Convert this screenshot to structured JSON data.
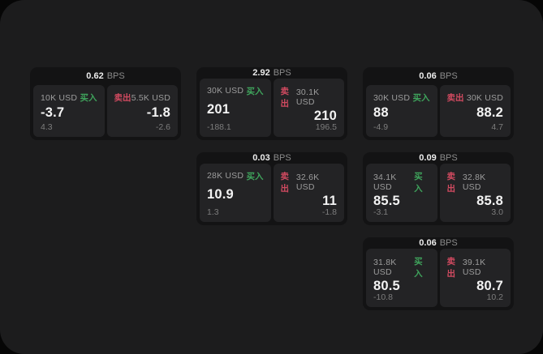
{
  "colors": {
    "buy_green": "#3fa45c",
    "sell_red": "#d14a60",
    "window_bg": "#1c1c1d",
    "card_bg": "#131314",
    "panel_bg": "#232325"
  },
  "labels": {
    "bps": "BPS",
    "buy": "买入",
    "sell": "卖出"
  },
  "cards": [
    {
      "bps": "0.62",
      "buy": {
        "amount": "10K USD",
        "price": "-3.7",
        "delta": "4.3"
      },
      "sell": {
        "amount": "5.5K USD",
        "price": "-1.8",
        "delta": "-2.6"
      }
    },
    {
      "bps": "2.92",
      "buy": {
        "amount": "30K USD",
        "price": "201",
        "delta": "-188.1"
      },
      "sell": {
        "amount": "30.1K USD",
        "price": "210",
        "delta": "196.5"
      }
    },
    {
      "bps": "0.06",
      "buy": {
        "amount": "30K USD",
        "price": "88",
        "delta": "-4.9"
      },
      "sell": {
        "amount": "30K USD",
        "price": "88.2",
        "delta": "4.7"
      }
    },
    {
      "bps": "0.03",
      "buy": {
        "amount": "28K USD",
        "price": "10.9",
        "delta": "1.3"
      },
      "sell": {
        "amount": "32.6K USD",
        "price": "11",
        "delta": "-1.8"
      }
    },
    {
      "bps": "0.09",
      "buy": {
        "amount": "34.1K USD",
        "price": "85.5",
        "delta": "-3.1"
      },
      "sell": {
        "amount": "32.8K USD",
        "price": "85.8",
        "delta": "3.0"
      }
    },
    {
      "bps": "0.06",
      "buy": {
        "amount": "31.8K USD",
        "price": "80.5",
        "delta": "-10.8"
      },
      "sell": {
        "amount": "39.1K USD",
        "price": "80.7",
        "delta": "10.2"
      }
    }
  ]
}
